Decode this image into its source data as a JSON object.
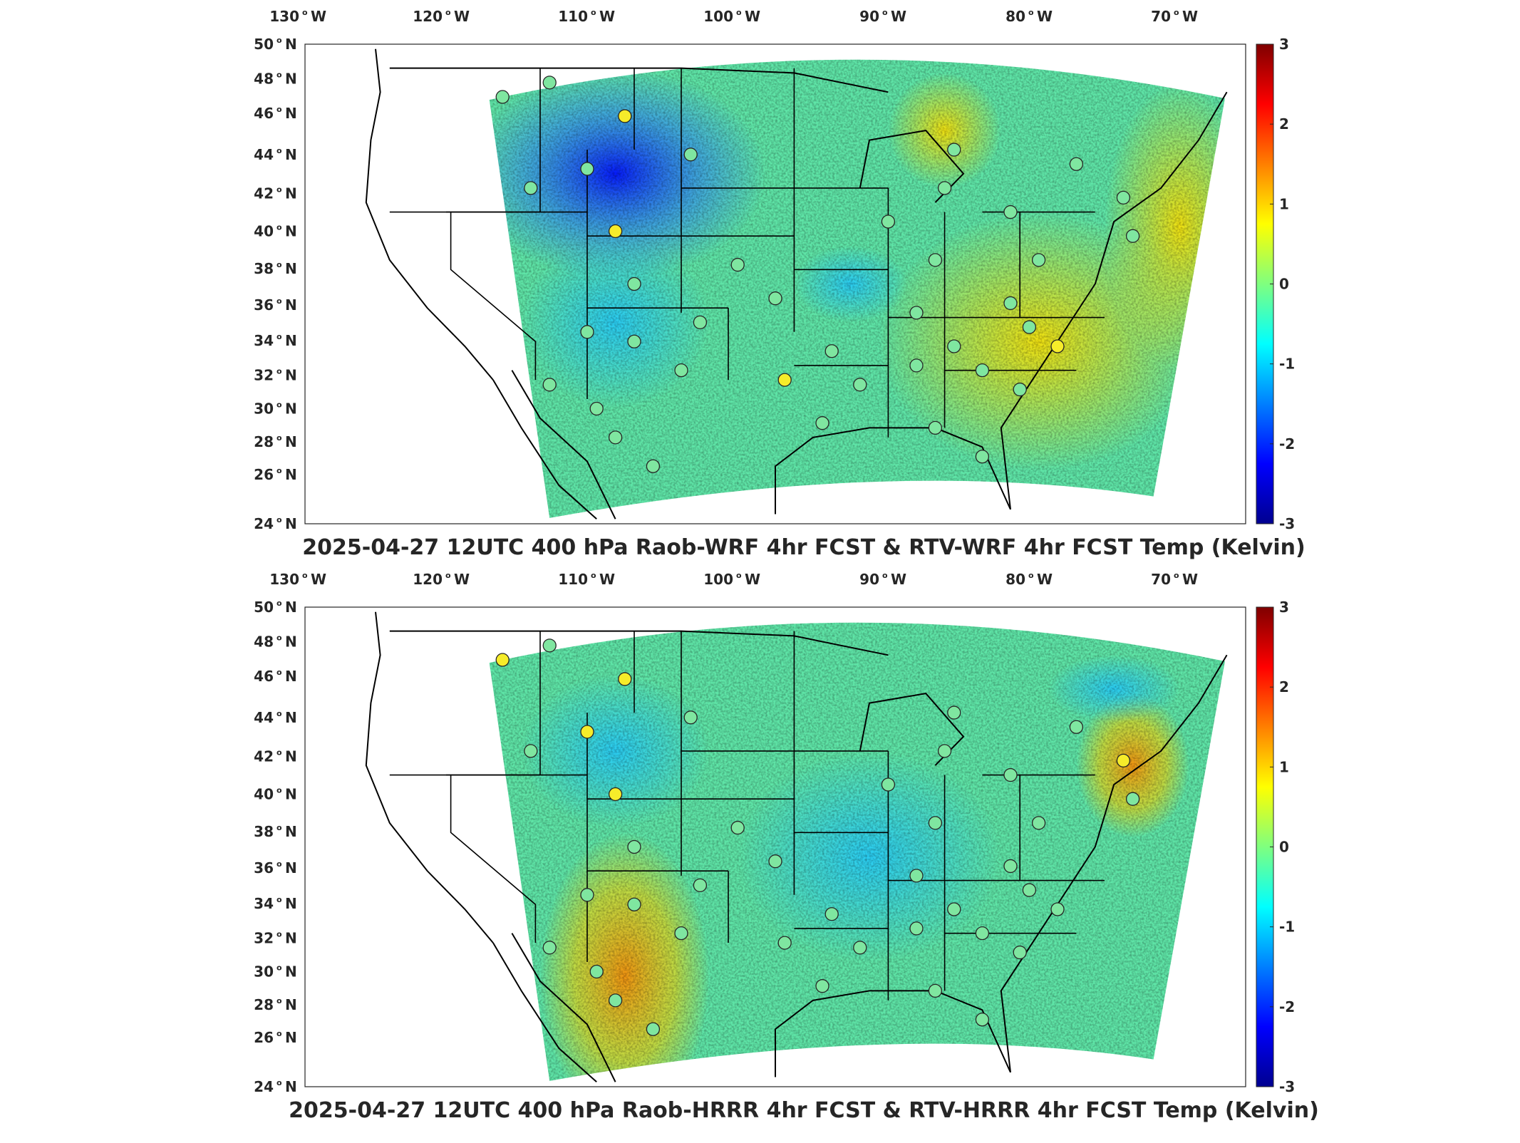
{
  "panels": [
    {
      "id": "wrf",
      "title": "2025-04-27 12UTC 400 hPa Raob-WRF 4hr FCST & RTV-WRF 4hr FCST Temp (Kelvin)",
      "lon_ticks": [
        "130",
        "120",
        "110",
        "100",
        "90",
        "80",
        "70"
      ],
      "lon_suffix": "W",
      "lat_ticks": [
        "50",
        "48",
        "46",
        "44",
        "42",
        "40",
        "38",
        "36",
        "34",
        "32",
        "30",
        "28",
        "26",
        "24"
      ],
      "lat_suffix": "N",
      "colorbar": {
        "ticks": [
          "3",
          "2",
          "1",
          "0",
          "-1",
          "-2",
          "-3"
        ],
        "range": [
          -3,
          3
        ]
      },
      "field_bias": "western cold anomaly (blue over Wyoming/Montana), warm yellow over southeast"
    },
    {
      "id": "hrrr",
      "title": "2025-04-27 12UTC 400 hPa Raob-HRRR 4hr FCST & RTV-HRRR 4hr FCST Temp (Kelvin)",
      "lon_ticks": [
        "130",
        "120",
        "110",
        "100",
        "90",
        "80",
        "70"
      ],
      "lon_suffix": "W",
      "lat_ticks": [
        "50",
        "48",
        "46",
        "44",
        "42",
        "40",
        "38",
        "36",
        "34",
        "32",
        "30",
        "28",
        "26",
        "24"
      ],
      "lat_suffix": "N",
      "colorbar": {
        "ticks": [
          "3",
          "2",
          "1",
          "0",
          "-1",
          "-2",
          "-3"
        ],
        "range": [
          -3,
          3
        ]
      },
      "field_bias": "warm orange over New Mexico/Arizona, cyan over central plains"
    }
  ],
  "colormap": [
    "#00008f",
    "#0000ff",
    "#007fff",
    "#00ffff",
    "#7fff7f",
    "#ffff00",
    "#ff7f00",
    "#ff0000",
    "#7f0000"
  ]
}
